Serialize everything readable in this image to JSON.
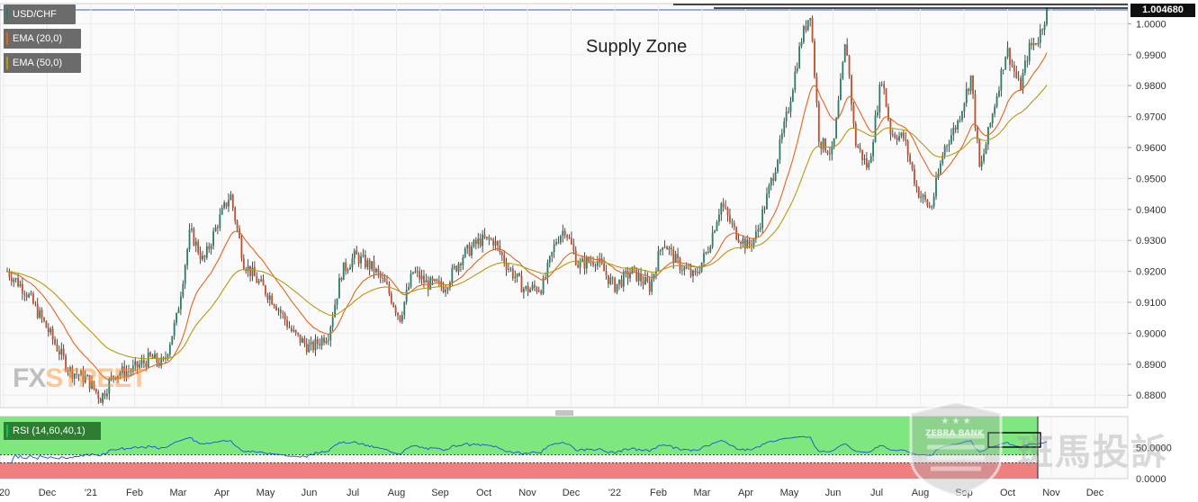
{
  "chart_data": {
    "type": "candlestick",
    "pair": "USD/CHF",
    "last_price": "1.004680",
    "annotation": "Supply Zone",
    "overlays": [
      {
        "name": "EMA (20,0)",
        "color": "#e0661e"
      },
      {
        "name": "EMA (50,0)",
        "color": "#b59a12"
      }
    ],
    "price_axis": {
      "min": 0.876,
      "max": 1.0065,
      "ticks": [
        "1.0000",
        "0.9900",
        "0.9800",
        "0.9700",
        "0.9600",
        "0.9500",
        "0.9400",
        "0.9300",
        "0.9200",
        "0.9100",
        "0.9000",
        "0.8900",
        "0.8800"
      ]
    },
    "time_axis": [
      "'20",
      "Dec",
      "'21",
      "Feb",
      "Mar",
      "Apr",
      "May",
      "Jun",
      "Jul",
      "Aug",
      "Sep",
      "Oct",
      "Nov",
      "Dec",
      "'22",
      "Feb",
      "Mar",
      "Apr",
      "May",
      "Jun",
      "Jul",
      "Aug",
      "Sep",
      "Oct",
      "Nov",
      "Dec"
    ],
    "close_path": [
      [
        0,
        0.92
      ],
      [
        0.02,
        0.914
      ],
      [
        0.04,
        0.904
      ],
      [
        0.07,
        0.888
      ],
      [
        0.09,
        0.885
      ],
      [
        0.105,
        0.879
      ],
      [
        0.12,
        0.887
      ],
      [
        0.14,
        0.888
      ],
      [
        0.16,
        0.892
      ],
      [
        0.175,
        0.89
      ],
      [
        0.19,
        0.905
      ],
      [
        0.205,
        0.933
      ],
      [
        0.22,
        0.923
      ],
      [
        0.235,
        0.935
      ],
      [
        0.25,
        0.945
      ],
      [
        0.265,
        0.923
      ],
      [
        0.28,
        0.917
      ],
      [
        0.3,
        0.91
      ],
      [
        0.32,
        0.9
      ],
      [
        0.34,
        0.895
      ],
      [
        0.36,
        0.9
      ],
      [
        0.375,
        0.92
      ],
      [
        0.39,
        0.925
      ],
      [
        0.41,
        0.921
      ],
      [
        0.425,
        0.915
      ],
      [
        0.44,
        0.905
      ],
      [
        0.455,
        0.92
      ],
      [
        0.47,
        0.916
      ],
      [
        0.49,
        0.915
      ],
      [
        0.51,
        0.925
      ],
      [
        0.53,
        0.93
      ],
      [
        0.545,
        0.93
      ],
      [
        0.56,
        0.922
      ],
      [
        0.58,
        0.914
      ],
      [
        0.6,
        0.915
      ],
      [
        0.615,
        0.93
      ],
      [
        0.625,
        0.934
      ],
      [
        0.64,
        0.922
      ],
      [
        0.66,
        0.924
      ],
      [
        0.68,
        0.915
      ],
      [
        0.7,
        0.92
      ],
      [
        0.72,
        0.915
      ],
      [
        0.735,
        0.93
      ],
      [
        0.75,
        0.923
      ],
      [
        0.77,
        0.918
      ],
      [
        0.785,
        0.927
      ],
      [
        0.8,
        0.942
      ],
      [
        0.815,
        0.933
      ],
      [
        0.83,
        0.928
      ],
      [
        0.84,
        0.932
      ],
      [
        0.86,
        0.953
      ],
      [
        0.875,
        0.972
      ],
      [
        0.89,
        0.995
      ],
      [
        0.9,
        1.004
      ],
      [
        0.91,
        0.962
      ],
      [
        0.925,
        0.958
      ],
      [
        0.94,
        0.995
      ],
      [
        0.95,
        0.962
      ],
      [
        0.965,
        0.953
      ],
      [
        0.98,
        0.983
      ],
      [
        0.99,
        0.965
      ],
      [
        1.005,
        0.963
      ],
      [
        1.02,
        0.946
      ],
      [
        1.035,
        0.94
      ],
      [
        1.05,
        0.96
      ],
      [
        1.065,
        0.968
      ],
      [
        1.08,
        0.983
      ],
      [
        1.09,
        0.952
      ],
      [
        1.105,
        0.972
      ],
      [
        1.12,
        0.992
      ],
      [
        1.135,
        0.979
      ],
      [
        1.145,
        0.992
      ],
      [
        1.155,
        0.995
      ],
      [
        1.165,
        1.004
      ]
    ],
    "rsi": {
      "label": "RSI (14,60,40,1)",
      "ticks": [
        "50.0000",
        "0.0000"
      ],
      "ymin": 0,
      "ymax": 100,
      "upper": 60,
      "lower": 40
    }
  },
  "colors": {
    "up": "#2e7d6a",
    "down": "#c0502e",
    "ema20": "#e0661e",
    "ema50": "#b59a12",
    "rsi_line": "#1e50d8",
    "rsi_upper_band": "#7ee87e",
    "rsi_lower_band": "#f08080"
  },
  "branding": {
    "fxstreet_fx": "FX",
    "fxstreet_st": "STREET",
    "zebra_bank": "ZEBRA BANK",
    "zebra_cn": "斑馬投訴"
  }
}
